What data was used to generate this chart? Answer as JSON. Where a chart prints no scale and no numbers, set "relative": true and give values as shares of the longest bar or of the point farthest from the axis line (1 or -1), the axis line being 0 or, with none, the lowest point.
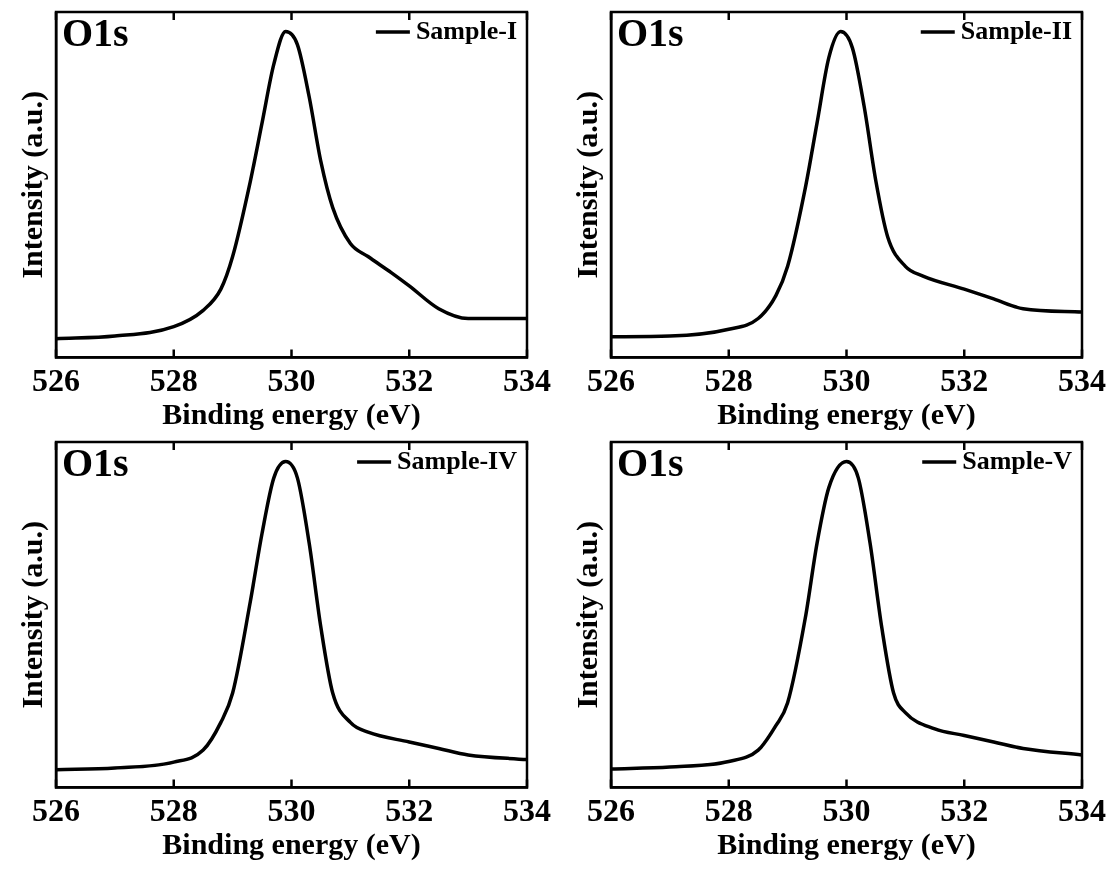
{
  "chart_data": [
    {
      "type": "line",
      "title": "O1s",
      "xlabel": "Binding energy (eV)",
      "ylabel": "Intensity (a.u.)",
      "relative": true,
      "xlim": [
        526,
        534
      ],
      "xticks": [
        526,
        528,
        530,
        532,
        534
      ],
      "legend": "top right",
      "grid": false,
      "marker": "none",
      "line_style": "solid",
      "series": [
        {
          "name": "Sample-I",
          "color": "#000000",
          "x": [
            526,
            527,
            528,
            528.5,
            528.8,
            529,
            529.3,
            529.5,
            529.7,
            529.9,
            530.1,
            530.3,
            530.5,
            530.7,
            531,
            531.3,
            531.7,
            532,
            532.5,
            533,
            534
          ],
          "values": [
            0.058,
            0.066,
            0.095,
            0.145,
            0.21,
            0.31,
            0.54,
            0.72,
            0.9,
            1,
            0.96,
            0.8,
            0.6,
            0.46,
            0.35,
            0.31,
            0.26,
            0.22,
            0.15,
            0.12,
            0.12
          ]
        }
      ]
    },
    {
      "type": "line",
      "title": "O1s",
      "xlabel": "Binding energy (eV)",
      "ylabel": "Intensity (a.u.)",
      "relative": true,
      "xlim": [
        526,
        534
      ],
      "xticks": [
        526,
        528,
        530,
        532,
        534
      ],
      "legend": "top right",
      "grid": false,
      "marker": "none",
      "line_style": "solid",
      "series": [
        {
          "name": "Sample-II",
          "color": "#000000",
          "x": [
            526,
            527,
            528,
            528.5,
            528.8,
            529,
            529.3,
            529.5,
            529.7,
            529.9,
            530.1,
            530.3,
            530.5,
            530.7,
            531,
            531.3,
            532,
            532.5,
            533,
            534
          ],
          "values": [
            0.064,
            0.066,
            0.087,
            0.12,
            0.19,
            0.28,
            0.52,
            0.72,
            0.92,
            1,
            0.95,
            0.77,
            0.54,
            0.37,
            0.28,
            0.25,
            0.21,
            0.18,
            0.15,
            0.14
          ]
        }
      ]
    },
    {
      "type": "line",
      "title": "O1s",
      "xlabel": "Binding energy (eV)",
      "ylabel": "Intensity (a.u.)",
      "relative": true,
      "xlim": [
        526,
        534
      ],
      "xticks": [
        526,
        528,
        530,
        532,
        534
      ],
      "legend": "top right",
      "grid": false,
      "marker": "none",
      "line_style": "solid",
      "series": [
        {
          "name": "Sample-IV",
          "color": "#000000",
          "x": [
            526,
            527,
            528,
            528.5,
            528.8,
            529,
            529.3,
            529.5,
            529.7,
            529.9,
            530.1,
            530.3,
            530.5,
            530.7,
            531,
            531.3,
            532,
            532.5,
            533,
            534
          ],
          "values": [
            0.055,
            0.06,
            0.078,
            0.115,
            0.2,
            0.29,
            0.57,
            0.78,
            0.95,
            1,
            0.95,
            0.75,
            0.49,
            0.29,
            0.2,
            0.17,
            0.14,
            0.12,
            0.1,
            0.086
          ]
        }
      ]
    },
    {
      "type": "line",
      "title": "O1s",
      "xlabel": "Binding energy (eV)",
      "ylabel": "Intensity (a.u.)",
      "relative": true,
      "xlim": [
        526,
        534
      ],
      "xticks": [
        526,
        528,
        530,
        532,
        534
      ],
      "legend": "top right",
      "grid": false,
      "marker": "none",
      "line_style": "solid",
      "series": [
        {
          "name": "Sample-V",
          "color": "#000000",
          "x": [
            526,
            527,
            528,
            528.5,
            528.8,
            529,
            529.3,
            529.5,
            529.7,
            530,
            530.2,
            530.4,
            530.6,
            530.8,
            531,
            531.5,
            532,
            532.5,
            533,
            534
          ],
          "values": [
            0.057,
            0.063,
            0.08,
            0.115,
            0.19,
            0.26,
            0.52,
            0.75,
            0.92,
            1,
            0.95,
            0.75,
            0.49,
            0.29,
            0.23,
            0.18,
            0.16,
            0.14,
            0.12,
            0.1
          ]
        }
      ]
    }
  ]
}
